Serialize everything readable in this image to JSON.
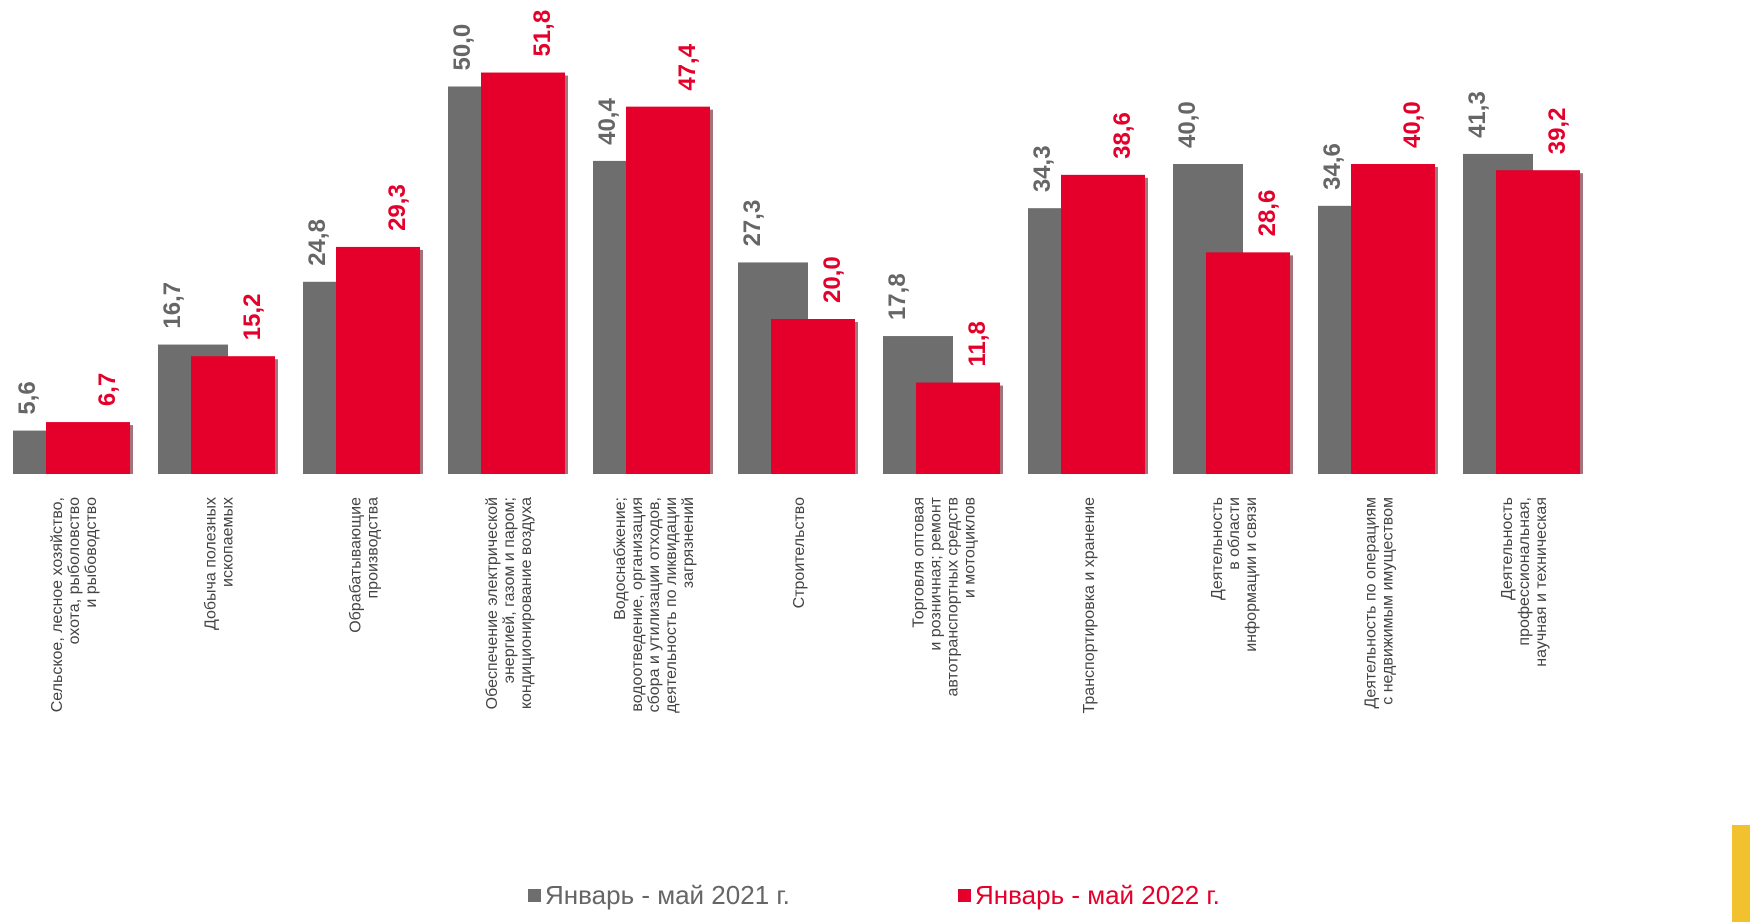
{
  "chart_data": {
    "type": "bar",
    "title": "",
    "xlabel": "",
    "ylabel": "",
    "ylim": [
      0,
      53
    ],
    "grid": false,
    "legend_position": "bottom",
    "categories": [
      "Сельское, лесное хозяйство, охота, рыболовство и рыбоводство",
      "Добыча полезных ископаемых",
      "Обрабатывающие производства",
      "Обеспечение электрической энергией, газом и паром; кондиционирование воздуха",
      "Водоснабжение; водоотведение, организация сбора и утилизации отходов, деятельность по ликвидации загрязнений",
      "Строительство",
      "Торговля оптовая и розничная; ремонт автотранспортных средств и мотоциклов",
      "Транспортировка и хранение",
      "Деятельность в области информации и связи",
      "Деятельность по операциям с недвижимым имуществом",
      "Деятельность профессиональная, научная и техническая"
    ],
    "category_lines": [
      [
        "Сельское, лесное хозяйство,",
        "охота, рыболовство",
        "и рыбоводство"
      ],
      [
        "Добыча полезных",
        "ископаемых"
      ],
      [
        "Обрабатывающие",
        "производства"
      ],
      [
        "Обеспечение электрической",
        "энергией, газом и паром;",
        "кондиционирование воздуха"
      ],
      [
        "Водоснабжение;",
        "водоотведение, организация",
        "сбора и утилизации отходов,",
        "деятельность по ликвидации",
        "загрязнений"
      ],
      [
        "Строительство"
      ],
      [
        "Торговля оптовая",
        "и розничная; ремонт",
        "автотранспортных средств",
        "и мотоциклов"
      ],
      [
        "Транспортировка и хранение"
      ],
      [
        "Деятельность",
        "в области",
        "информации и связи"
      ],
      [
        "Деятельность по операциям",
        "с недвижимым имуществом"
      ],
      [
        "Деятельность",
        "профессиональная,",
        "научная и техническая"
      ]
    ],
    "series": [
      {
        "name": "Январь - май 2021 г.",
        "color": "#6E6E6E",
        "label_color": "#666666",
        "values": [
          5.6,
          16.7,
          24.8,
          50.0,
          40.4,
          27.3,
          17.8,
          34.3,
          40.0,
          34.6,
          41.3
        ],
        "labels": [
          "5,6",
          "16,7",
          "24,8",
          "50,0",
          "40,4",
          "27,3",
          "17,8",
          "34,3",
          "40,0",
          "34,6",
          "41,3"
        ]
      },
      {
        "name": "Январь - май 2022 г.",
        "color": "#E4002B",
        "label_color": "#E4002B",
        "values": [
          6.7,
          15.2,
          29.3,
          51.8,
          47.4,
          20.0,
          11.8,
          38.6,
          28.6,
          40.0,
          39.2
        ],
        "labels": [
          "6,7",
          "15,2",
          "29,3",
          "51,8",
          "47,4",
          "20,0",
          "11,8",
          "38,6",
          "28,6",
          "40,0",
          "39,2"
        ]
      }
    ]
  },
  "legend": {
    "series1_label": "Январь - май 2021 г.",
    "series2_label": "Январь - май 2022 г."
  },
  "colors": {
    "accent": "#F2C12E"
  }
}
